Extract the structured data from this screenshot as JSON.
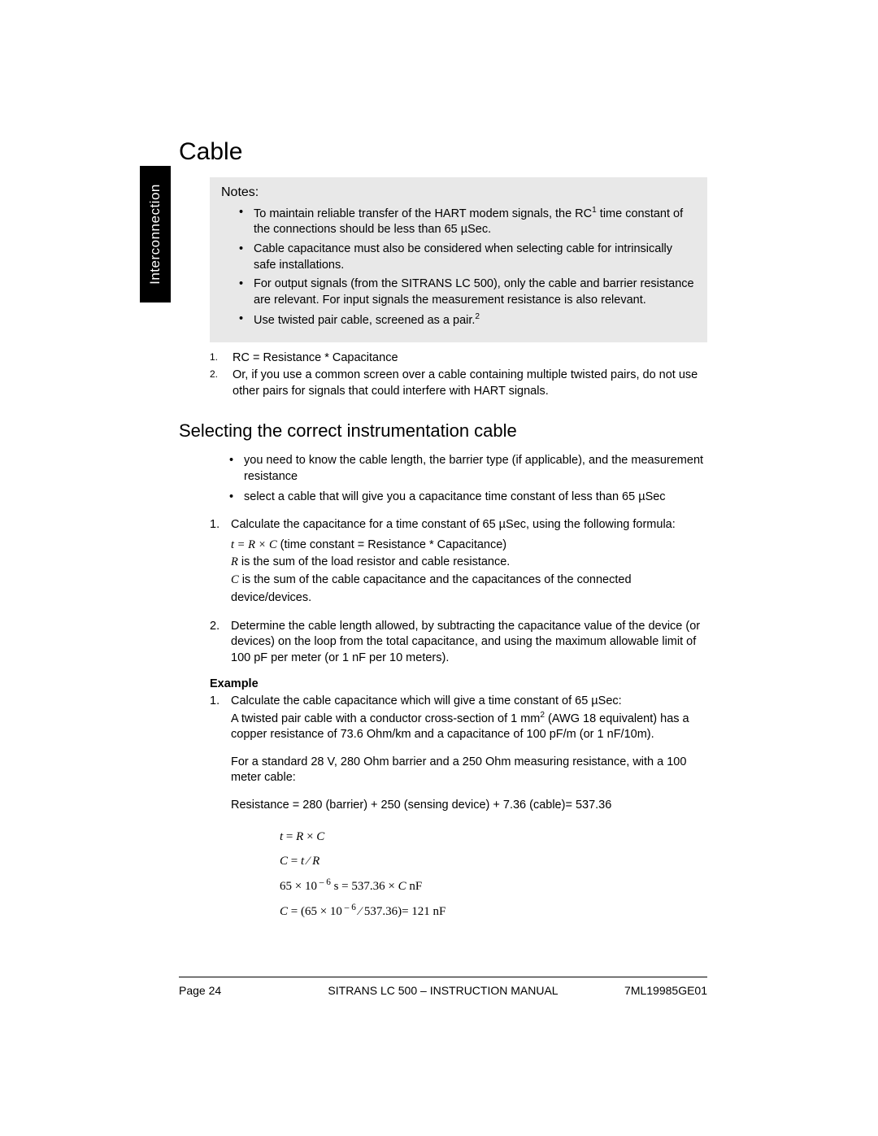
{
  "sideTab": "Interconnection",
  "heading1": "Cable",
  "notes": {
    "header": "Notes:",
    "items": [
      {
        "pre": "To maintain reliable transfer of the HART modem signals, the RC",
        "sup": "1",
        "post": " time constant of the connections should be less than 65 µSec."
      },
      {
        "pre": "Cable capacitance must also be considered when selecting cable for intrinsically safe installations.",
        "sup": "",
        "post": ""
      },
      {
        "pre": "For output signals (from the SITRANS LC 500), only the cable and barrier resistance are relevant. For input signals the measurement resistance is also relevant.",
        "sup": "",
        "post": ""
      },
      {
        "pre": "Use twisted pair cable, screened as a pair.",
        "sup": "2",
        "post": ""
      }
    ]
  },
  "footnotes": [
    {
      "n": "1.",
      "text": "RC = Resistance * Capacitance"
    },
    {
      "n": "2.",
      "text": "Or, if you use a common screen over a cable containing multiple twisted pairs, do not use other pairs for signals that could interfere with HART signals."
    }
  ],
  "heading2": "Selecting the correct instrumentation cable",
  "preBullets": [
    "you need to know the cable length, the barrier type (if applicable), and the measurement resistance",
    "select a cable that will give you a capacitance time constant of less than 65 µSec"
  ],
  "steps": [
    {
      "n": "1.",
      "lead": "Calculate the capacitance for a time constant of 65 µSec, using the following formula:",
      "formulas": [
        {
          "sym": "t = R × C",
          "rest": "  (time constant = Resistance * Capacitance)"
        },
        {
          "sym": "R",
          "rest": " is the sum of the load resistor and cable resistance."
        },
        {
          "sym": "C",
          "rest": " is the sum of the cable capacitance and the capacitances of the connected device/devices."
        }
      ]
    },
    {
      "n": "2.",
      "lead": "Determine the cable length allowed, by subtracting the capacitance value of the device (or devices) on the loop from the total capacitance, and using the maximum allowable limit of 100 pF per meter (or 1 nF per 10 meters).",
      "formulas": []
    }
  ],
  "example": {
    "header": "Example",
    "n": "1.",
    "p1a": "Calculate the cable capacitance which will give a time constant of 65 µSec:",
    "p1b_pre": "A twisted pair cable with a conductor cross-section of 1 mm",
    "p1b_sup": "2",
    "p1b_post": " (AWG 18 equivalent) has a copper resistance of 73.6 Ohm/km and a capacitance of 100 pF/m (or 1 nF/10m).",
    "p2": "For a standard 28 V, 280 Ohm barrier and a 250 Ohm measuring resistance, with a 100 meter cable:",
    "p3": "Resistance = 280 (barrier) + 250 (sensing device) + 7.36 (cable)= 537.36",
    "math": [
      "<span class=\"ital\">t</span> = <span class=\"ital\">R</span> × <span class=\"ital\">C</span>",
      "<span class=\"ital\">C</span> = <span class=\"ital\">t</span> ⁄ <span class=\"ital\">R</span>",
      "65 × 10<span class=\"supn\"> – 6</span>  s = 537.36 × <span class=\"ital\">C</span>  nF",
      "<span class=\"ital\">C</span> = (65 × 10<span class=\"supn\"> – 6</span> ⁄ 537.36)=  121 nF"
    ]
  },
  "footer": {
    "left": "Page 24",
    "center": "SITRANS LC  500 – INSTRUCTION MANUAL",
    "right": "7ML19985GE01"
  }
}
